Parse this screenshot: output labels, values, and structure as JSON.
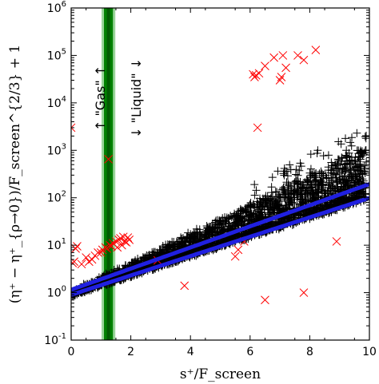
{
  "chart_data": {
    "type": "scatter",
    "xlabel": "s⁺/F_screen",
    "ylabel": "(η⁺ − η⁺_{ρ→0})/F_screen^{2/3} + 1",
    "xlim": [
      0,
      10
    ],
    "ylim_log10": [
      -1,
      6
    ],
    "y_scale": "log",
    "x_ticks": [
      0,
      2,
      4,
      6,
      8,
      10
    ],
    "y_tick_exponents": [
      -1,
      0,
      1,
      2,
      3,
      4,
      5,
      6
    ],
    "grid": false,
    "colors": {
      "liquid_markers": "#000000",
      "gas_markers": "#ff0000",
      "bound_curves": "#2020e0",
      "vertical_band_dark": "#008000",
      "vertical_band_light": "#7fc97f"
    },
    "vertical_band": {
      "x_center": 1.25,
      "x_min": 1.1,
      "x_max": 1.4
    },
    "annotations": [
      {
        "text": "↑ \"Gas\" ↑",
        "x": 0.7,
        "y_log10": 4.1
      },
      {
        "text": "↓ \"Liquid\" ↓",
        "x": 1.9,
        "y_log10": 4.1
      }
    ],
    "series": [
      {
        "marker": "x",
        "points": [
          [
            0.0,
            3000
          ],
          [
            0.05,
            4.2
          ],
          [
            0.1,
            4.5
          ],
          [
            0.15,
            8.5
          ],
          [
            0.2,
            9.5
          ],
          [
            0.35,
            4.0
          ],
          [
            0.5,
            5.5
          ],
          [
            0.6,
            4.5
          ],
          [
            0.7,
            5.0
          ],
          [
            0.8,
            6.0
          ],
          [
            0.9,
            7.0
          ],
          [
            1.0,
            7.0
          ],
          [
            1.05,
            8.0
          ],
          [
            1.15,
            9.0
          ],
          [
            1.2,
            8.5
          ],
          [
            1.25,
            650
          ],
          [
            1.3,
            10.0
          ],
          [
            1.35,
            9.5
          ],
          [
            1.4,
            11.0
          ],
          [
            1.5,
            12.0
          ],
          [
            1.55,
            9.0
          ],
          [
            1.6,
            13.0
          ],
          [
            1.65,
            14.0
          ],
          [
            1.7,
            10.0
          ],
          [
            1.75,
            15.0
          ],
          [
            1.8,
            12.0
          ],
          [
            1.85,
            11.5
          ],
          [
            1.9,
            14.5
          ],
          [
            1.95,
            13.0
          ],
          [
            2.9,
            4.8
          ],
          [
            3.8,
            1.4
          ],
          [
            5.5,
            5.8
          ],
          [
            5.6,
            8.0
          ],
          [
            5.8,
            12.0
          ],
          [
            6.1,
            40000
          ],
          [
            6.15,
            35000
          ],
          [
            6.2,
            38000
          ],
          [
            6.3,
            42000
          ],
          [
            6.5,
            60000
          ],
          [
            6.8,
            90000
          ],
          [
            7.0,
            30000
          ],
          [
            7.05,
            35000
          ],
          [
            7.1,
            100000
          ],
          [
            7.2,
            55000
          ],
          [
            7.6,
            100000
          ],
          [
            7.8,
            80000
          ],
          [
            8.2,
            130000
          ],
          [
            6.25,
            3000
          ],
          [
            6.5,
            0.7
          ],
          [
            7.8,
            1.0
          ],
          [
            8.9,
            12.0
          ]
        ]
      }
    ],
    "curves": [
      {
        "name_hint": "upper",
        "y0": 1.15,
        "growth_per_x": 1.67
      },
      {
        "name_hint": "lower",
        "y0": 0.9,
        "growth_per_x": 1.6
      }
    ]
  }
}
